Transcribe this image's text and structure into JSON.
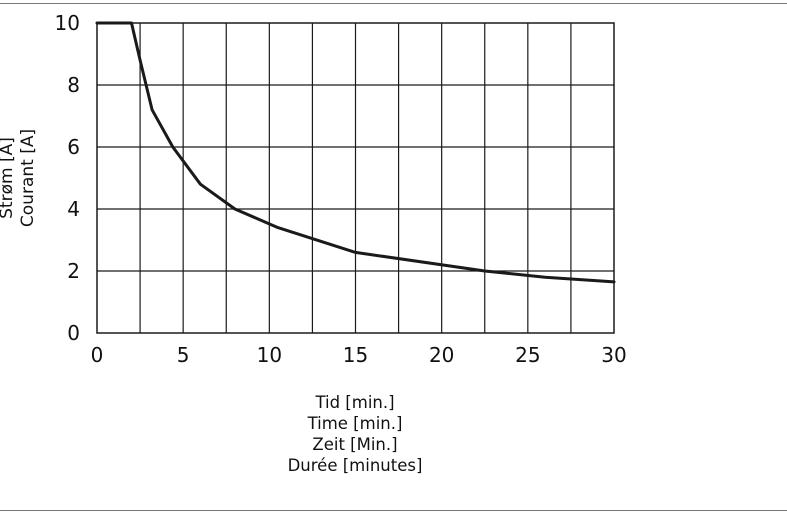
{
  "chart_data": {
    "type": "line",
    "xlabel_lines": [
      "Tid [min.]",
      "Time [min.]",
      "Zeit [Min.]",
      "Durée [minutes]"
    ],
    "ylabel_lines": [
      "Strøm [A]",
      "Courant  [A]"
    ],
    "xlim": [
      0,
      30
    ],
    "ylim": [
      0,
      10
    ],
    "x_ticks": [
      0,
      5,
      10,
      15,
      20,
      25,
      30
    ],
    "y_ticks": [
      0,
      2,
      4,
      6,
      8,
      10
    ],
    "grid": true,
    "series": [
      {
        "x": [
          0,
          2,
          2.5,
          3.2,
          4.4,
          6,
          8,
          10.5,
          15,
          22.5,
          26,
          30
        ],
        "y": [
          10,
          10,
          8.8,
          7.2,
          6.0,
          4.8,
          4.0,
          3.4,
          2.6,
          2.0,
          1.8,
          1.65
        ]
      }
    ],
    "line_color": "#1a1a1a",
    "grid_color": "#1a1a1a"
  }
}
